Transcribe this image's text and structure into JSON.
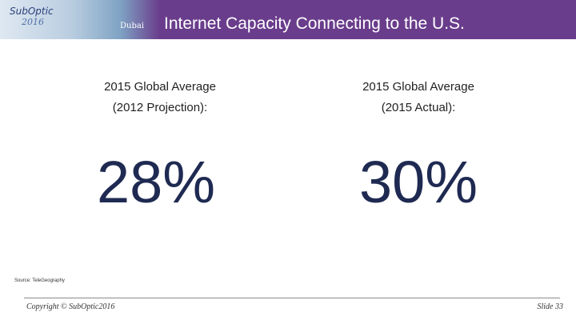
{
  "header": {
    "logo": "SubOptic",
    "logo_year": "2016",
    "host_city": "Dubai",
    "title": "Internet Capacity Connecting to the U.S."
  },
  "left": {
    "label_line1": "2015 Global Average",
    "label_line2": "(2012 Projection):",
    "value": "28%"
  },
  "right": {
    "label_line1": "2015 Global Average",
    "label_line2": "(2015 Actual):",
    "value": "30%"
  },
  "source": "Source: TeleGeography",
  "footer": {
    "copyright": "Copyright © SubOptic2016",
    "slide": "Slide 33"
  },
  "colors": {
    "header_bg": "#6a3d8c",
    "big_number": "#1f2a52"
  }
}
